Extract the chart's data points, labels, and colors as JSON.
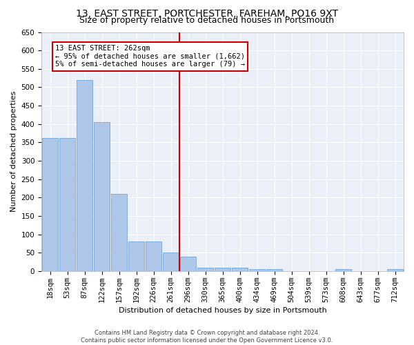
{
  "title": "13, EAST STREET, PORTCHESTER, FAREHAM, PO16 9XT",
  "subtitle": "Size of property relative to detached houses in Portsmouth",
  "xlabel": "Distribution of detached houses by size in Portsmouth",
  "ylabel": "Number of detached properties",
  "footer_line1": "Contains HM Land Registry data © Crown copyright and database right 2024.",
  "footer_line2": "Contains public sector information licensed under the Open Government Licence v3.0.",
  "annotation_title": "13 EAST STREET: 262sqm",
  "annotation_line1": "← 95% of detached houses are smaller (1,662)",
  "annotation_line2": "5% of semi-detached houses are larger (79) →",
  "bar_categories": [
    "18sqm",
    "53sqm",
    "87sqm",
    "122sqm",
    "157sqm",
    "192sqm",
    "226sqm",
    "261sqm",
    "296sqm",
    "330sqm",
    "365sqm",
    "400sqm",
    "434sqm",
    "469sqm",
    "504sqm",
    "539sqm",
    "573sqm",
    "608sqm",
    "643sqm",
    "677sqm",
    "712sqm"
  ],
  "bar_values": [
    362,
    362,
    520,
    405,
    210,
    80,
    80,
    50,
    40,
    10,
    10,
    10,
    5,
    5,
    0,
    0,
    0,
    5,
    0,
    0,
    5
  ],
  "bar_color": "#aec6e8",
  "bar_edge_color": "#5b9bd5",
  "vline_bar": "261sqm",
  "vline_color": "#cc0000",
  "annotation_box_color": "#cc0000",
  "background_color": "#eaeff8",
  "ylim": [
    0,
    650
  ],
  "yticks": [
    0,
    50,
    100,
    150,
    200,
    250,
    300,
    350,
    400,
    450,
    500,
    550,
    600,
    650
  ],
  "grid_color": "#ffffff",
  "title_fontsize": 10,
  "subtitle_fontsize": 9,
  "axis_label_fontsize": 8,
  "tick_fontsize": 7.5,
  "annotation_fontsize": 7.5,
  "footer_fontsize": 6
}
